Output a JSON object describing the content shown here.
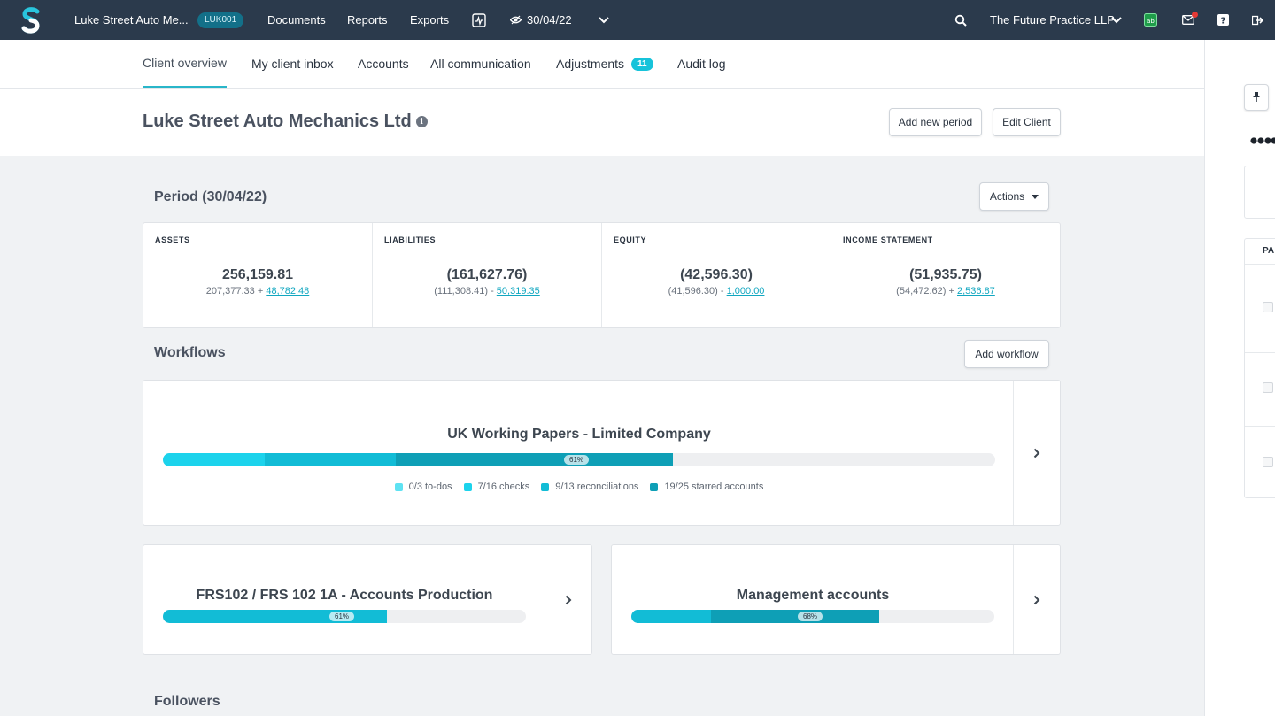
{
  "topbar": {
    "client_name": "Luke Street Auto Me...",
    "client_code": "LUK001",
    "nav": [
      "Documents",
      "Reports",
      "Exports"
    ],
    "period": "30/04/22",
    "practice": "The Future Practice LLP",
    "icons": [
      "logo-icon",
      "pulse-icon",
      "eye-icon",
      "chevron-down-icon",
      "search-icon",
      "app-icon",
      "mail-icon",
      "help-icon",
      "logout-icon"
    ]
  },
  "tabs": [
    {
      "label": "Client overview",
      "active": true
    },
    {
      "label": "My client inbox"
    },
    {
      "label": "Accounts"
    },
    {
      "label": "All communication"
    },
    {
      "label": "Adjustments",
      "badge": "11"
    },
    {
      "label": "Audit log"
    }
  ],
  "header": {
    "title": "Luke Street Auto Mechanics Ltd",
    "add_period": "Add new period",
    "edit_client": "Edit Client"
  },
  "period": {
    "title": "Period (30/04/22)",
    "actions": "Actions",
    "stats": [
      {
        "label": "ASSETS",
        "value": "256,159.81",
        "base": "207,377.33 + ",
        "link": "48,782.48"
      },
      {
        "label": "LIABILITIES",
        "value": "(161,627.76)",
        "base": "(111,308.41) - ",
        "link": "50,319.35"
      },
      {
        "label": "EQUITY",
        "value": "(42,596.30)",
        "base": "(41,596.30) - ",
        "link": "1,000.00"
      },
      {
        "label": "INCOME STATEMENT",
        "value": "(51,935.75)",
        "base": "(54,472.62) + ",
        "link": "2,536.87"
      }
    ]
  },
  "workflows": {
    "title": "Workflows",
    "add": "Add workflow",
    "main": {
      "title": "UK Working Papers - Limited Company",
      "progress": 61,
      "pct_label": "61%",
      "legend": [
        "0/3 to-dos",
        "7/16 checks",
        "9/13 reconciliations",
        "19/25 starred accounts"
      ]
    },
    "frs": {
      "title": "FRS102 / FRS 102 1A - Accounts Production",
      "progress": 61,
      "pct_label": "61%"
    },
    "mgmt": {
      "title": "Management accounts",
      "progress": 68,
      "pct_label": "68%"
    }
  },
  "followers": {
    "title": "Followers"
  },
  "right_panel": {
    "label": "PA"
  },
  "colors": {
    "seg1": "#1cd3ec",
    "seg2": "#12bcd6",
    "seg3": "#0e9fb6",
    "topbar": "#2b3a4c"
  }
}
